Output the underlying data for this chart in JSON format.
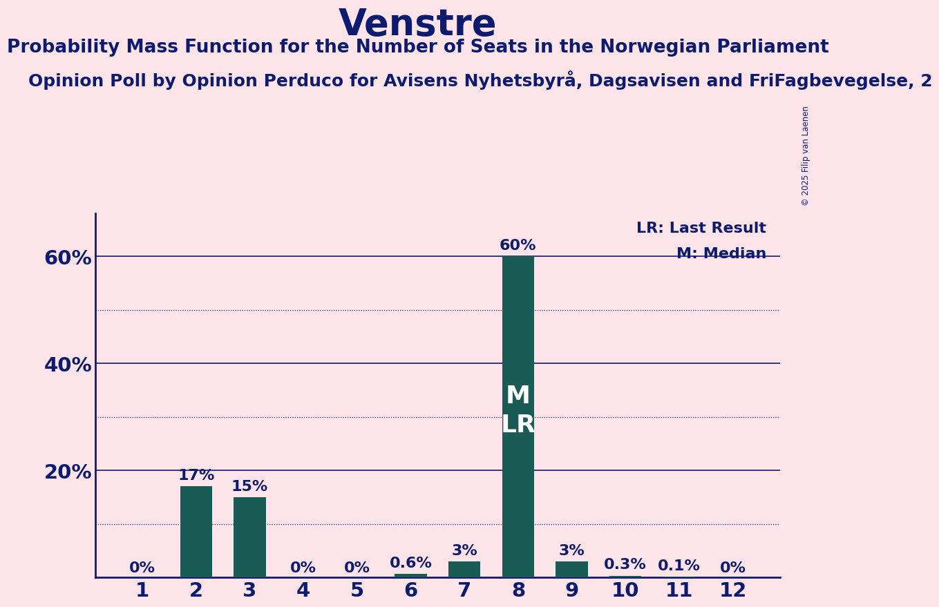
{
  "title": "Venstre",
  "subtitle": "Probability Mass Function for the Number of Seats in the Norwegian Parliament",
  "subsubtitle": "Opinion Poll by Opinion Perduco for Avisens Nyhetsbyrå, Dagsavisen and FriFagbevegelse, 2",
  "copyright": "© 2025 Filip van Laenen",
  "categories": [
    1,
    2,
    3,
    4,
    5,
    6,
    7,
    8,
    9,
    10,
    11,
    12
  ],
  "values": [
    0.0,
    17.0,
    15.0,
    0.0,
    0.0,
    0.6,
    3.0,
    60.0,
    3.0,
    0.3,
    0.1,
    0.0
  ],
  "labels": [
    "0%",
    "17%",
    "15%",
    "0%",
    "0%",
    "0.6%",
    "3%",
    "60%",
    "3%",
    "0.3%",
    "0.1%",
    "0%"
  ],
  "bar_color": "#1a5c55",
  "background_color": "#fce4e8",
  "text_color": "#0d1b6e",
  "median_seat": 8,
  "lr_seat": 8,
  "legend_lr": "LR: Last Result",
  "legend_m": "M: Median",
  "yticks": [
    20,
    40,
    60
  ],
  "ytick_labels": [
    "20%",
    "40%",
    "60%"
  ],
  "ylim": [
    0,
    68
  ],
  "title_fontsize": 38,
  "subtitle_fontsize": 19,
  "subsubtitle_fontsize": 18,
  "bar_label_fontsize": 16,
  "tick_label_fontsize": 21,
  "legend_fontsize": 16
}
